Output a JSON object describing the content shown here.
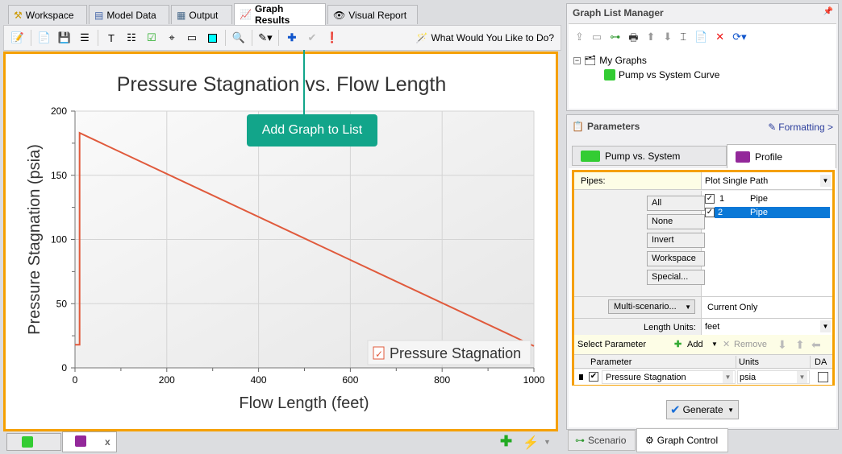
{
  "tabs": [
    {
      "label": "Workspace"
    },
    {
      "label": "Model Data"
    },
    {
      "label": "Output"
    },
    {
      "label": "Graph Results"
    },
    {
      "label": "Visual Report"
    }
  ],
  "toolbar": {
    "help_label": "What Would You Like to Do?"
  },
  "tooltip": "Add Graph to List",
  "chart_data": {
    "type": "line",
    "title": "Pressure Stagnation vs. Flow Length",
    "xlabel": "Flow Length (feet)",
    "ylabel": "Pressure Stagnation (psia)",
    "xlim": [
      0,
      1000
    ],
    "ylim": [
      0,
      200
    ],
    "xticks": [
      "0",
      "200",
      "400",
      "600",
      "800",
      "1000"
    ],
    "yticks": [
      "0",
      "50",
      "100",
      "150",
      "200"
    ],
    "grid": true,
    "legend_placement": "bottom-right",
    "series": [
      {
        "name": "Pressure Stagnation",
        "color": "#e05a3c",
        "x": [
          0,
          10,
          10,
          1000
        ],
        "y": [
          18,
          18,
          183,
          17
        ]
      }
    ]
  },
  "bottom_tabs": {
    "close": "x"
  },
  "glm": {
    "title": "Graph List Manager",
    "root": "My Graphs",
    "child": "Pump vs System Curve"
  },
  "params": {
    "title": "Parameters",
    "formatting": "Formatting >",
    "tab1": "Pump vs. System",
    "tab2": "Profile",
    "pipes_label": "Pipes:",
    "pipes_value": "Plot Single Path",
    "buttons": [
      "All",
      "None",
      "Invert",
      "Workspace",
      "Special..."
    ],
    "pipes": [
      {
        "num": "1",
        "name": "Pipe",
        "checked": true
      },
      {
        "num": "2",
        "name": "Pipe",
        "checked": true
      }
    ],
    "multi": "Multi-scenario...",
    "multi_value": "Current Only",
    "length_label": "Length Units:",
    "length_value": "feet",
    "select_param": "Select Parameter",
    "add": "Add",
    "remove": "Remove",
    "col_param": "Parameter",
    "col_units": "Units",
    "col_da": "DA",
    "row_param": "Pressure Stagnation",
    "row_units": "psia",
    "generate": "Generate"
  },
  "footer": {
    "scenario": "Scenario",
    "graph_control": "Graph Control"
  }
}
